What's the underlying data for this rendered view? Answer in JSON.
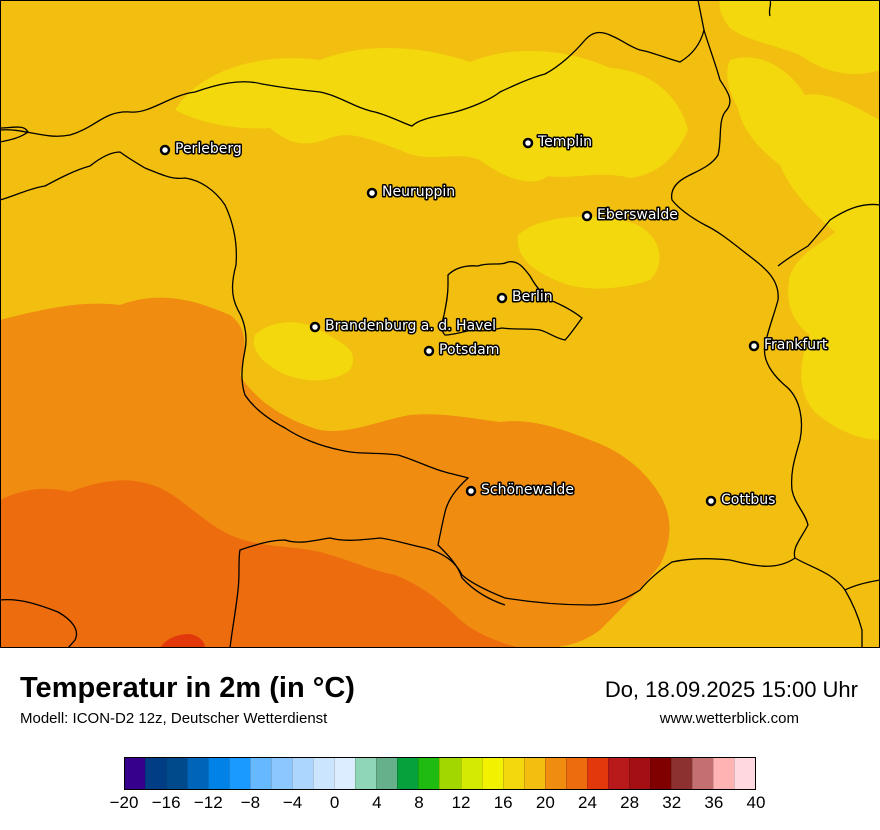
{
  "map": {
    "field_colors": {
      "light_yellow": "#f2d80d",
      "amber": "#f2be0f",
      "orange": "#f08c10",
      "dark_orange": "#ec6c0e",
      "red_orange": "#e2380c"
    },
    "border_color": "#000000",
    "cities": [
      {
        "id": "perleberg",
        "label": "Perleberg"
      },
      {
        "id": "templin",
        "label": "Templin"
      },
      {
        "id": "neuruppin",
        "label": "Neuruppin"
      },
      {
        "id": "eberswalde",
        "label": "Eberswalde"
      },
      {
        "id": "berlin",
        "label": "Berlin"
      },
      {
        "id": "brandenburg",
        "label": "Brandenburg a. d. Havel"
      },
      {
        "id": "potsdam",
        "label": "Potsdam"
      },
      {
        "id": "frankfurt",
        "label": "Frankfurt"
      },
      {
        "id": "schoenewalde",
        "label": "Schönewalde"
      },
      {
        "id": "cottbus",
        "label": "Cottbus"
      }
    ]
  },
  "footer": {
    "title": "Temperatur in 2m (in °C)",
    "model": "Modell: ICON-D2 12z, Deutscher Wetterdienst",
    "datetime": "Do, 18.09.2025 15:00 Uhr",
    "website": "www.wetterblick.com"
  },
  "legend": {
    "min": -20,
    "max": 40,
    "colors": [
      "#36008c",
      "#003d85",
      "#004a8c",
      "#0064b8",
      "#0082e6",
      "#1a99ff",
      "#66b8ff",
      "#8cc8ff",
      "#add6ff",
      "#cce5ff",
      "#dcedff",
      "#8fd6b8",
      "#66b08c",
      "#06a03c",
      "#1fbb10",
      "#a3d700",
      "#d4ea00",
      "#f2f200",
      "#f2d80d",
      "#f2be0f",
      "#f08c10",
      "#ec6c0e",
      "#e2380c",
      "#b8191a",
      "#a40f14",
      "#800000",
      "#8c3030",
      "#c47070",
      "#ffb3b3",
      "#ffd9df"
    ],
    "ticks": [
      "−20",
      "−16",
      "−12",
      "−8",
      "−4",
      "0",
      "4",
      "8",
      "12",
      "16",
      "20",
      "24",
      "28",
      "32",
      "36",
      "40"
    ]
  }
}
